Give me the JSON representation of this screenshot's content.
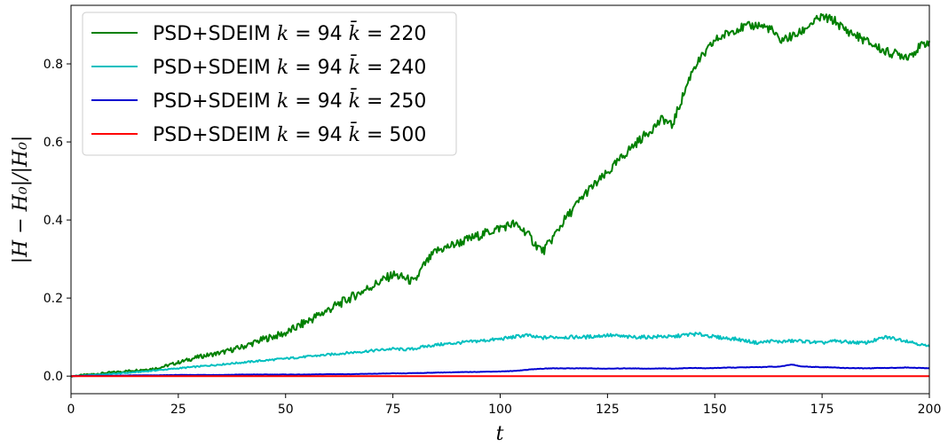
{
  "chart_data": {
    "type": "line",
    "xlabel": "t",
    "ylabel": "|H − H₀|/|H₀|",
    "xlim": [
      0,
      200
    ],
    "ylim": [
      -0.045,
      0.95
    ],
    "xticks": [
      0,
      25,
      50,
      75,
      100,
      125,
      150,
      175,
      200
    ],
    "xtick_labels": [
      "0",
      "25",
      "50",
      "75",
      "100",
      "125",
      "150",
      "175",
      "200"
    ],
    "yticks": [
      0.0,
      0.2,
      0.4,
      0.6,
      0.8
    ],
    "ytick_labels": [
      "0.0",
      "0.2",
      "0.4",
      "0.6",
      "0.8"
    ],
    "grid": false,
    "legend_position": "top-left",
    "x": [
      0,
      5,
      10,
      15,
      20,
      25,
      30,
      35,
      40,
      45,
      50,
      55,
      60,
      65,
      70,
      75,
      78,
      80,
      82,
      85,
      90,
      95,
      100,
      103,
      106,
      108,
      110,
      112,
      115,
      120,
      125,
      130,
      135,
      138,
      140,
      142,
      145,
      148,
      150,
      155,
      160,
      163,
      165,
      168,
      170,
      172,
      175,
      178,
      180,
      185,
      190,
      195,
      200
    ],
    "series": [
      {
        "name": "PSD+SDEIM k = 94 k̄ = 220",
        "color": "#008000",
        "values": [
          0.0,
          0.005,
          0.01,
          0.015,
          0.02,
          0.035,
          0.05,
          0.06,
          0.075,
          0.095,
          0.11,
          0.14,
          0.17,
          0.2,
          0.23,
          0.26,
          0.25,
          0.24,
          0.28,
          0.32,
          0.34,
          0.36,
          0.38,
          0.39,
          0.37,
          0.34,
          0.32,
          0.35,
          0.4,
          0.47,
          0.52,
          0.58,
          0.63,
          0.66,
          0.64,
          0.7,
          0.79,
          0.83,
          0.86,
          0.89,
          0.9,
          0.89,
          0.86,
          0.87,
          0.88,
          0.9,
          0.92,
          0.91,
          0.89,
          0.86,
          0.83,
          0.82,
          0.86
        ]
      },
      {
        "name": "PSD+SDEIM k = 94 k̄ = 240",
        "color": "#00bfbf",
        "values": [
          0.0,
          0.003,
          0.006,
          0.01,
          0.015,
          0.02,
          0.025,
          0.03,
          0.035,
          0.04,
          0.045,
          0.05,
          0.055,
          0.06,
          0.065,
          0.07,
          0.068,
          0.07,
          0.075,
          0.08,
          0.085,
          0.09,
          0.095,
          0.1,
          0.105,
          0.1,
          0.098,
          0.1,
          0.1,
          0.1,
          0.105,
          0.1,
          0.1,
          0.102,
          0.1,
          0.104,
          0.108,
          0.105,
          0.1,
          0.095,
          0.085,
          0.09,
          0.088,
          0.09,
          0.09,
          0.088,
          0.085,
          0.09,
          0.088,
          0.085,
          0.1,
          0.09,
          0.075
        ]
      },
      {
        "name": "PSD+SDEIM k = 94 k̄ = 250",
        "color": "#0000d0",
        "values": [
          0.0,
          0.001,
          0.001,
          0.002,
          0.002,
          0.003,
          0.003,
          0.003,
          0.004,
          0.004,
          0.004,
          0.004,
          0.005,
          0.005,
          0.006,
          0.007,
          0.007,
          0.008,
          0.008,
          0.009,
          0.01,
          0.011,
          0.012,
          0.013,
          0.016,
          0.018,
          0.019,
          0.02,
          0.02,
          0.02,
          0.019,
          0.02,
          0.019,
          0.02,
          0.019,
          0.02,
          0.021,
          0.02,
          0.021,
          0.022,
          0.023,
          0.024,
          0.024,
          0.03,
          0.025,
          0.024,
          0.023,
          0.022,
          0.021,
          0.02,
          0.021,
          0.022,
          0.02
        ]
      },
      {
        "name": "PSD+SDEIM k = 94 k̄ = 500",
        "color": "#ff0000",
        "values": [
          0.0,
          0.0,
          0.0,
          0.0,
          0.0,
          0.0,
          0.0,
          0.0,
          0.0,
          0.0,
          0.0,
          0.0,
          0.0,
          0.0,
          0.0,
          0.0,
          0.0,
          0.0,
          0.0,
          0.0,
          0.0,
          0.0,
          0.0,
          0.0,
          0.0,
          0.0,
          0.0,
          0.0,
          0.0,
          0.0,
          0.0,
          0.0,
          0.0,
          0.0,
          0.0,
          0.0,
          0.0,
          0.0,
          0.0,
          0.0,
          0.0,
          0.0,
          0.0,
          0.0,
          0.0,
          0.0,
          0.0,
          0.0,
          0.0,
          0.0,
          0.0,
          0.0,
          0.0
        ]
      }
    ],
    "legend": [
      {
        "label_text": "PSD+SDEIM",
        "k_label": "k",
        "k_value": "94",
        "kbar_label": "k̄",
        "kbar_value": "220"
      },
      {
        "label_text": "PSD+SDEIM",
        "k_label": "k",
        "k_value": "94",
        "kbar_label": "k̄",
        "kbar_value": "240"
      },
      {
        "label_text": "PSD+SDEIM",
        "k_label": "k",
        "k_value": "94",
        "kbar_label": "k̄",
        "kbar_value": "250"
      },
      {
        "label_text": "PSD+SDEIM",
        "k_label": "k",
        "k_value": "94",
        "kbar_label": "k̄",
        "kbar_value": "500"
      }
    ]
  }
}
